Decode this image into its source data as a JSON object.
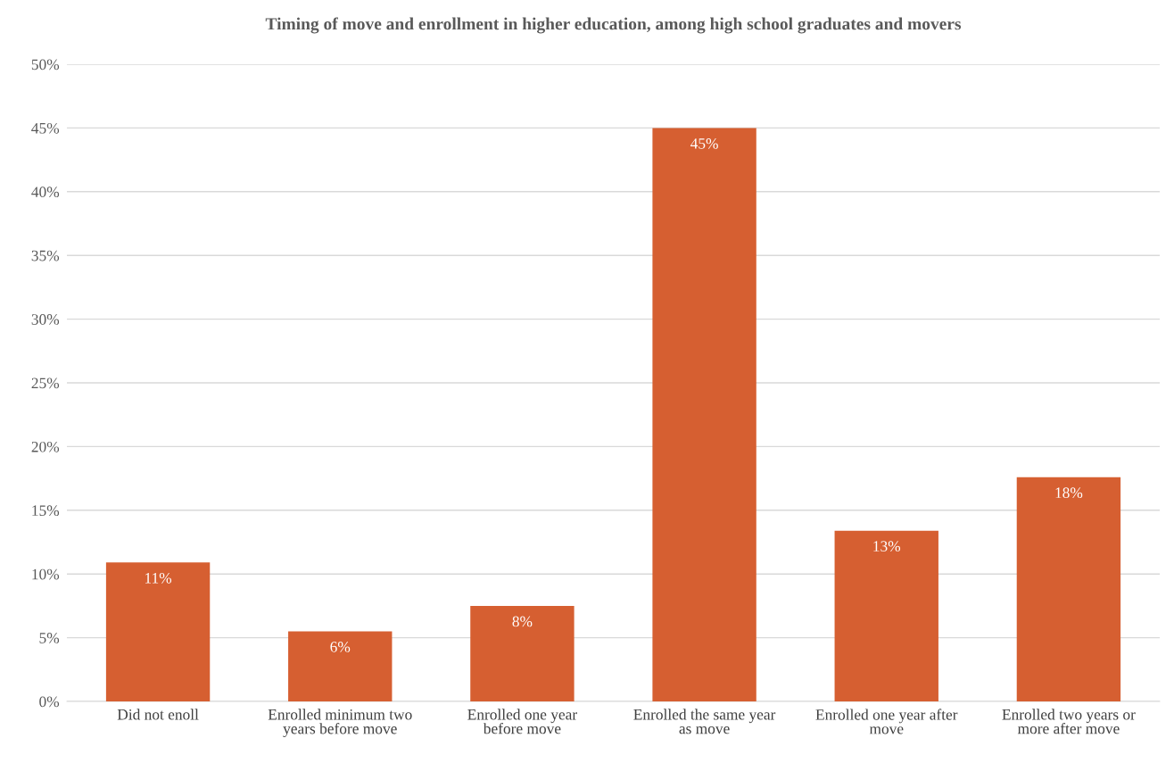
{
  "chart_data": {
    "type": "bar",
    "title": "Timing of move and enrollment in higher education, among high school graduates and movers",
    "categories": [
      "Did not enoll",
      "Enrolled minimum two years before move",
      "Enrolled one year before move",
      "Enrolled the same year as move",
      "Enrolled one year after move",
      "Enrolled two years or more after move"
    ],
    "values": [
      10.9,
      5.5,
      7.5,
      45.0,
      13.4,
      17.6
    ],
    "value_labels": [
      "11%",
      "6%",
      "8%",
      "45%",
      "13%",
      "18%"
    ],
    "color": "#d65f31",
    "ylim": [
      0,
      50
    ],
    "yticks": [
      {
        "value": 0,
        "label": "0%"
      },
      {
        "value": 5,
        "label": "5%"
      },
      {
        "value": 10,
        "label": "10%"
      },
      {
        "value": 15,
        "label": "15%"
      },
      {
        "value": 20,
        "label": "20%"
      },
      {
        "value": 25,
        "label": "25%"
      },
      {
        "value": 30,
        "label": "30%"
      },
      {
        "value": 35,
        "label": "35%"
      },
      {
        "value": 40,
        "label": "40%"
      },
      {
        "value": 45,
        "label": "45%"
      },
      {
        "value": 50,
        "label": "50%"
      }
    ],
    "grid": "y"
  }
}
